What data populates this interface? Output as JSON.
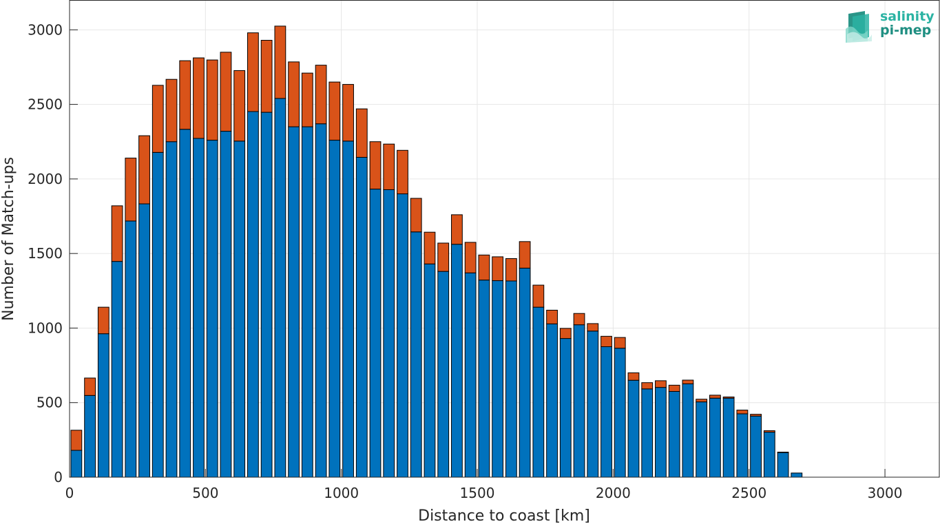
{
  "chart_data": {
    "type": "bar",
    "stacked": true,
    "xlabel": "Distance to coast [km]",
    "ylabel": "Number of Match-ups",
    "xlim": [
      0,
      3200
    ],
    "ylim": [
      0,
      3200
    ],
    "xticks": [
      0,
      500,
      1000,
      1500,
      2000,
      2500,
      3000
    ],
    "yticks": [
      0,
      500,
      1000,
      1500,
      2000,
      2500,
      3000
    ],
    "grid": true,
    "bin_width": 50,
    "x": [
      25,
      75,
      125,
      175,
      225,
      275,
      325,
      375,
      425,
      475,
      525,
      575,
      625,
      675,
      725,
      775,
      825,
      875,
      925,
      975,
      1025,
      1075,
      1125,
      1175,
      1225,
      1275,
      1325,
      1375,
      1425,
      1475,
      1525,
      1575,
      1625,
      1675,
      1725,
      1775,
      1825,
      1875,
      1925,
      1975,
      2025,
      2075,
      2125,
      2175,
      2225,
      2275,
      2325,
      2375,
      2425,
      2475,
      2525,
      2575,
      2625,
      2675
    ],
    "series": [
      {
        "color": "#0072bd",
        "values": [
          180,
          548,
          962,
          1447,
          1718,
          1833,
          2178,
          2250,
          2333,
          2272,
          2260,
          2320,
          2254,
          2452,
          2447,
          2540,
          2350,
          2350,
          2370,
          2260,
          2254,
          2145,
          1932,
          1928,
          1900,
          1645,
          1430,
          1380,
          1562,
          1370,
          1322,
          1318,
          1316,
          1402,
          1140,
          1028,
          930,
          1022,
          980,
          875,
          865,
          650,
          592,
          602,
          575,
          626,
          505,
          530,
          530,
          425,
          410,
          302,
          165,
          28
        ]
      },
      {
        "color": "#d95319",
        "values": [
          135,
          117,
          178,
          373,
          422,
          457,
          450,
          418,
          460,
          540,
          538,
          530,
          473,
          528,
          483,
          485,
          435,
          360,
          393,
          390,
          380,
          325,
          318,
          306,
          292,
          225,
          213,
          190,
          198,
          205,
          168,
          160,
          150,
          178,
          148,
          92,
          68,
          76,
          50,
          70,
          72,
          50,
          42,
          45,
          42,
          25,
          18,
          20,
          8,
          25,
          12,
          10,
          3,
          0
        ]
      }
    ]
  },
  "logo": {
    "line1": "salinity",
    "line2": "pi-mep"
  }
}
